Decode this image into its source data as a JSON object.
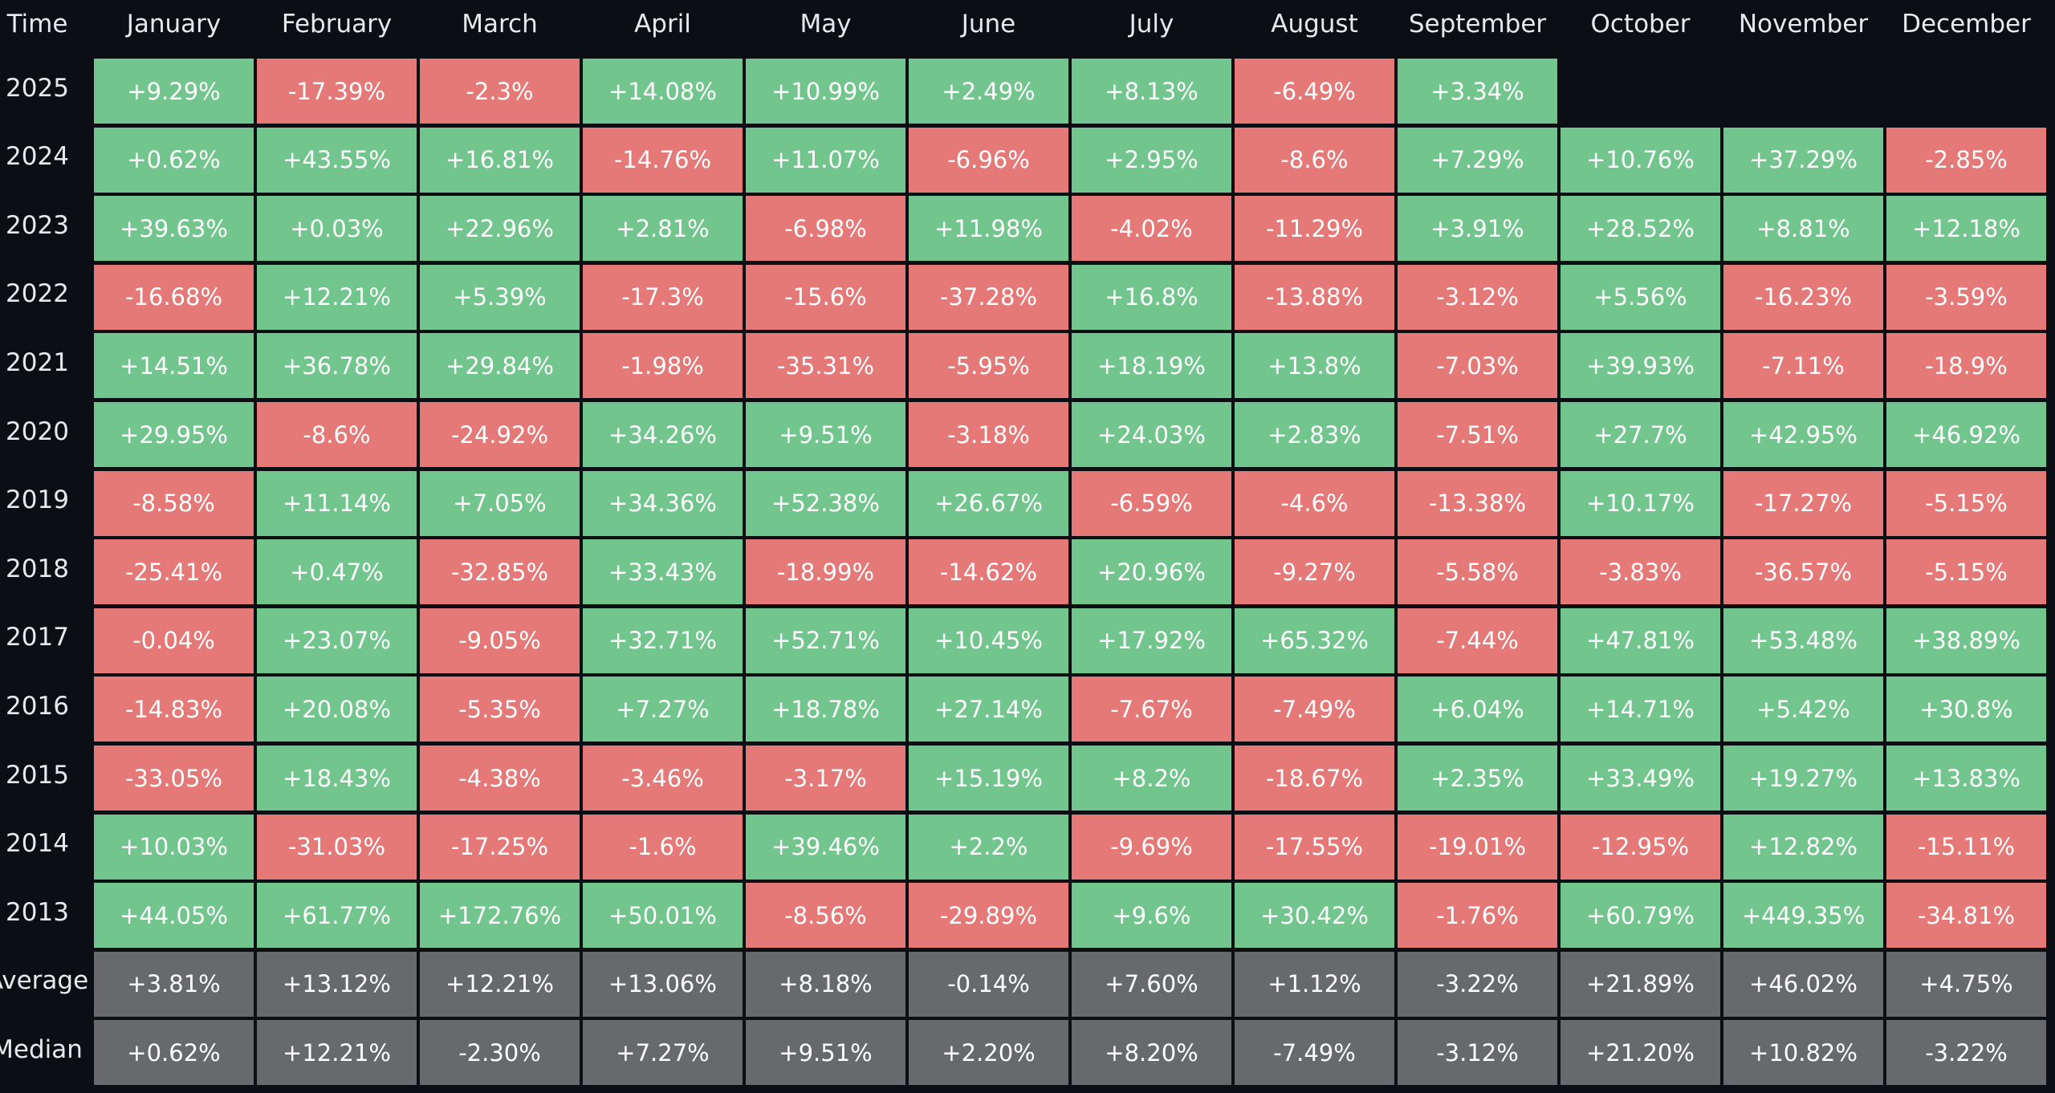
{
  "colors": {
    "positive": "#72c68d",
    "negative": "#e47977",
    "summary": "#68696d",
    "background": "#0b0e13",
    "text": "#e8e9ec"
  },
  "chart_data": {
    "type": "table",
    "corner_label": "Time",
    "columns": [
      "January",
      "February",
      "March",
      "April",
      "May",
      "June",
      "July",
      "August",
      "September",
      "October",
      "November",
      "December"
    ],
    "rows": [
      {
        "label": "2025",
        "values": [
          "+9.29%",
          "-17.39%",
          "-2.3%",
          "+14.08%",
          "+10.99%",
          "+2.49%",
          "+8.13%",
          "-6.49%",
          "+3.34%",
          "",
          "",
          ""
        ]
      },
      {
        "label": "2024",
        "values": [
          "+0.62%",
          "+43.55%",
          "+16.81%",
          "-14.76%",
          "+11.07%",
          "-6.96%",
          "+2.95%",
          "-8.6%",
          "+7.29%",
          "+10.76%",
          "+37.29%",
          "-2.85%"
        ]
      },
      {
        "label": "2023",
        "values": [
          "+39.63%",
          "+0.03%",
          "+22.96%",
          "+2.81%",
          "-6.98%",
          "+11.98%",
          "-4.02%",
          "-11.29%",
          "+3.91%",
          "+28.52%",
          "+8.81%",
          "+12.18%"
        ]
      },
      {
        "label": "2022",
        "values": [
          "-16.68%",
          "+12.21%",
          "+5.39%",
          "-17.3%",
          "-15.6%",
          "-37.28%",
          "+16.8%",
          "-13.88%",
          "-3.12%",
          "+5.56%",
          "-16.23%",
          "-3.59%"
        ]
      },
      {
        "label": "2021",
        "values": [
          "+14.51%",
          "+36.78%",
          "+29.84%",
          "-1.98%",
          "-35.31%",
          "-5.95%",
          "+18.19%",
          "+13.8%",
          "-7.03%",
          "+39.93%",
          "-7.11%",
          "-18.9%"
        ]
      },
      {
        "label": "2020",
        "values": [
          "+29.95%",
          "-8.6%",
          "-24.92%",
          "+34.26%",
          "+9.51%",
          "-3.18%",
          "+24.03%",
          "+2.83%",
          "-7.51%",
          "+27.7%",
          "+42.95%",
          "+46.92%"
        ]
      },
      {
        "label": "2019",
        "values": [
          "-8.58%",
          "+11.14%",
          "+7.05%",
          "+34.36%",
          "+52.38%",
          "+26.67%",
          "-6.59%",
          "-4.6%",
          "-13.38%",
          "+10.17%",
          "-17.27%",
          "-5.15%"
        ]
      },
      {
        "label": "2018",
        "values": [
          "-25.41%",
          "+0.47%",
          "-32.85%",
          "+33.43%",
          "-18.99%",
          "-14.62%",
          "+20.96%",
          "-9.27%",
          "-5.58%",
          "-3.83%",
          "-36.57%",
          "-5.15%"
        ]
      },
      {
        "label": "2017",
        "values": [
          "-0.04%",
          "+23.07%",
          "-9.05%",
          "+32.71%",
          "+52.71%",
          "+10.45%",
          "+17.92%",
          "+65.32%",
          "-7.44%",
          "+47.81%",
          "+53.48%",
          "+38.89%"
        ]
      },
      {
        "label": "2016",
        "values": [
          "-14.83%",
          "+20.08%",
          "-5.35%",
          "+7.27%",
          "+18.78%",
          "+27.14%",
          "-7.67%",
          "-7.49%",
          "+6.04%",
          "+14.71%",
          "+5.42%",
          "+30.8%"
        ]
      },
      {
        "label": "2015",
        "values": [
          "-33.05%",
          "+18.43%",
          "-4.38%",
          "-3.46%",
          "-3.17%",
          "+15.19%",
          "+8.2%",
          "-18.67%",
          "+2.35%",
          "+33.49%",
          "+19.27%",
          "+13.83%"
        ]
      },
      {
        "label": "2014",
        "values": [
          "+10.03%",
          "-31.03%",
          "-17.25%",
          "-1.6%",
          "+39.46%",
          "+2.2%",
          "-9.69%",
          "-17.55%",
          "-19.01%",
          "-12.95%",
          "+12.82%",
          "-15.11%"
        ]
      },
      {
        "label": "2013",
        "values": [
          "+44.05%",
          "+61.77%",
          "+172.76%",
          "+50.01%",
          "-8.56%",
          "-29.89%",
          "+9.6%",
          "+30.42%",
          "-1.76%",
          "+60.79%",
          "+449.35%",
          "-34.81%"
        ]
      }
    ],
    "summary_rows": [
      {
        "label": "Average",
        "values": [
          "+3.81%",
          "+13.12%",
          "+12.21%",
          "+13.06%",
          "+8.18%",
          "-0.14%",
          "+7.60%",
          "+1.12%",
          "-3.22%",
          "+21.89%",
          "+46.02%",
          "+4.75%"
        ]
      },
      {
        "label": "Median",
        "values": [
          "+0.62%",
          "+12.21%",
          "-2.30%",
          "+7.27%",
          "+9.51%",
          "+2.20%",
          "+8.20%",
          "-7.49%",
          "-3.12%",
          "+21.20%",
          "+10.82%",
          "-3.22%"
        ]
      }
    ]
  }
}
